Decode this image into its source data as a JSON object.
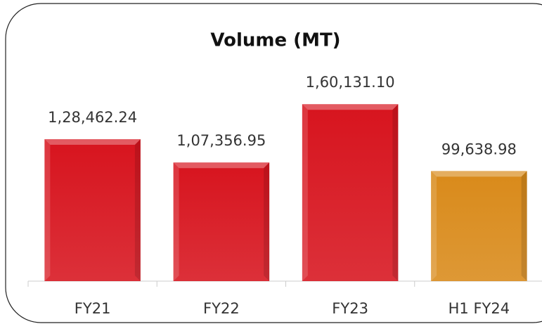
{
  "chart_data": {
    "type": "bar",
    "title": "Volume (MT)",
    "categories": [
      "FY21",
      "FY22",
      "FY23",
      "H1 FY24"
    ],
    "values": [
      128462.24,
      107356.95,
      160131.1,
      99638.98
    ],
    "value_labels": [
      "1,28,462.24",
      "1,07,356.95",
      "1,60,131.10",
      "99,638.98"
    ],
    "colors": [
      "#d7141e",
      "#d7141e",
      "#d7141e",
      "#d98a1a"
    ],
    "ylim": [
      0,
      180000
    ]
  }
}
